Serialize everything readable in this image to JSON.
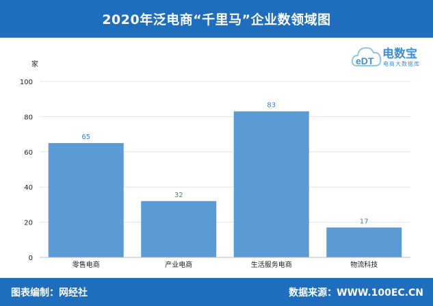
{
  "header": {
    "title": "2020年泛电商“千里马”企业数领域图"
  },
  "logo": {
    "mark_text": "eDT",
    "brand": "电数宝",
    "tagline": "电商大数据库"
  },
  "footer": {
    "left_text": "图表编制：网经社",
    "right_text": "数据来源：WWW.100EC.CN"
  },
  "colors": {
    "header_bg": "#1f6dbd",
    "bar": "#5b9bd5",
    "data_label": "#3b7fc4"
  },
  "chart_data": {
    "type": "bar",
    "title": "2020年泛电商“千里马”企业数领域图",
    "ylabel": "家",
    "xlabel": "",
    "categories": [
      "零售电商",
      "产业电商",
      "生活服务电商",
      "物流科技"
    ],
    "values": [
      65,
      32,
      83,
      17
    ],
    "ylim": [
      0,
      100
    ],
    "yticks": [
      0,
      20,
      40,
      60,
      80,
      100
    ],
    "grid": true,
    "legend": "none"
  }
}
